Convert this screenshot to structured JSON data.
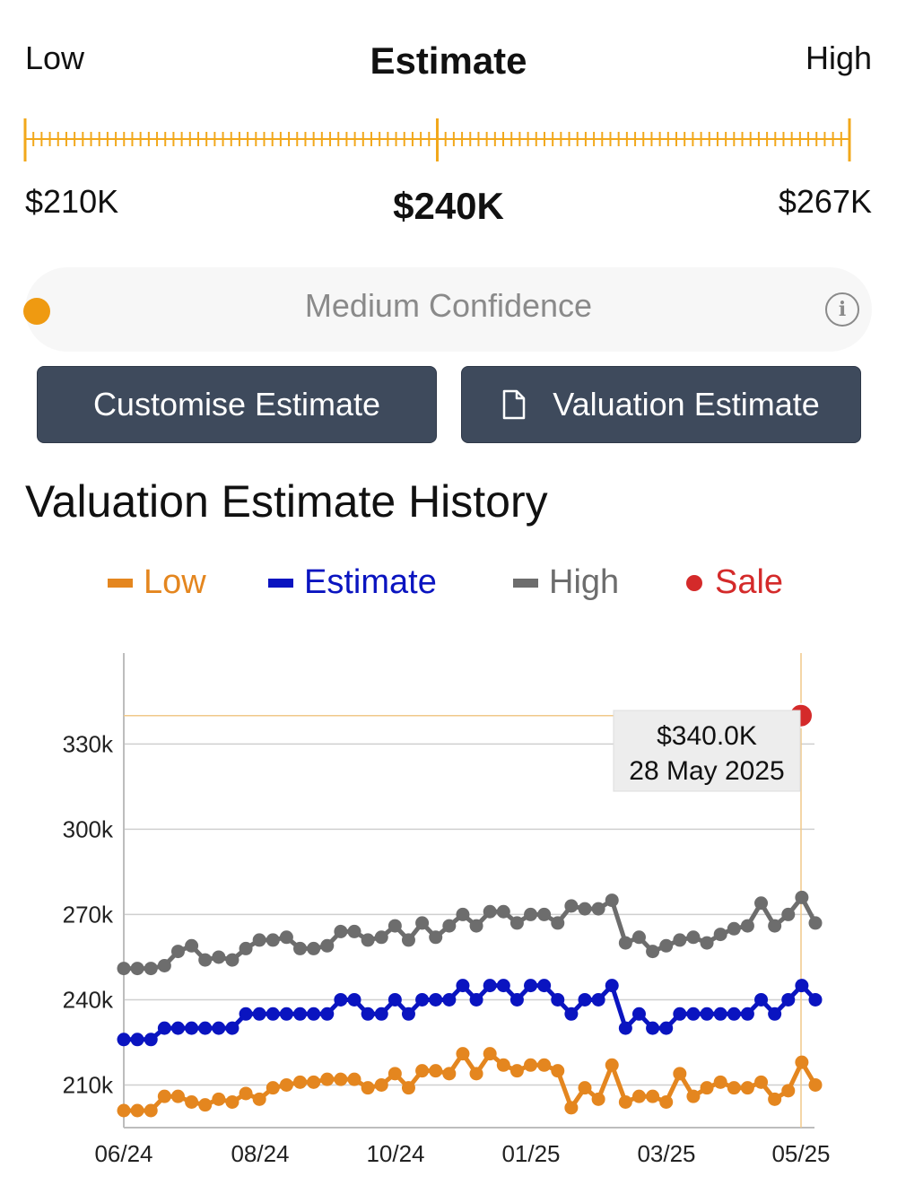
{
  "estimate_range": {
    "low_label": "Low",
    "title": "Estimate",
    "high_label": "High",
    "low_value": "$210K",
    "estimate_value": "$240K",
    "high_value": "$267K"
  },
  "confidence": {
    "label": "Medium Confidence",
    "color": "#ef9a11",
    "info_icon": "info-icon"
  },
  "buttons": {
    "customise": "Customise Estimate",
    "valuation": "Valuation Estimate",
    "valuation_icon": "document-icon"
  },
  "history": {
    "title": "Valuation Estimate History"
  },
  "colors": {
    "low": "#e4861f",
    "estimate": "#0a14c0",
    "high": "#6d6d6d",
    "sale": "#d42a2a",
    "tick": "#f2a81b",
    "button_bg": "#3e4a5c"
  },
  "chart_data": {
    "type": "line",
    "legend": [
      {
        "name": "Low",
        "color": "#e4861f",
        "marker": "bar"
      },
      {
        "name": "Estimate",
        "color": "#0a14c0",
        "marker": "bar"
      },
      {
        "name": "High",
        "color": "#6d6d6d",
        "marker": "bar"
      },
      {
        "name": "Sale",
        "color": "#d42a2a",
        "marker": "dot"
      }
    ],
    "legend_placement": "top-center",
    "x_ticks": [
      "06/24",
      "08/24",
      "10/24",
      "01/25",
      "03/25",
      "05/25"
    ],
    "y_ticks": [
      210,
      240,
      270,
      300,
      330
    ],
    "y_tick_labels": [
      "210k",
      "240k",
      "270k",
      "300k",
      "330k"
    ],
    "ylim": [
      195,
      362
    ],
    "grid": true,
    "series": [
      {
        "name": "High",
        "values": [
          251,
          251,
          251,
          252,
          257,
          259,
          254,
          255,
          254,
          258,
          261,
          261,
          262,
          258,
          258,
          259,
          264,
          264,
          261,
          262,
          266,
          261,
          267,
          262,
          266,
          270,
          266,
          271,
          271,
          267,
          270,
          270,
          267,
          273,
          272,
          272,
          275,
          260,
          262,
          257,
          259,
          261,
          262,
          260,
          263,
          265,
          266,
          274,
          266,
          270,
          276,
          267
        ]
      },
      {
        "name": "Estimate",
        "values": [
          226,
          226,
          226,
          230,
          230,
          230,
          230,
          230,
          230,
          235,
          235,
          235,
          235,
          235,
          235,
          235,
          240,
          240,
          235,
          235,
          240,
          235,
          240,
          240,
          240,
          245,
          240,
          245,
          245,
          240,
          245,
          245,
          240,
          235,
          240,
          240,
          245,
          230,
          235,
          230,
          230,
          235,
          235,
          235,
          235,
          235,
          235,
          240,
          235,
          240,
          245,
          240
        ]
      },
      {
        "name": "Low",
        "values": [
          201,
          201,
          201,
          206,
          206,
          204,
          203,
          205,
          204,
          207,
          205,
          209,
          210,
          211,
          211,
          212,
          212,
          212,
          209,
          210,
          214,
          209,
          215,
          215,
          214,
          221,
          214,
          221,
          217,
          215,
          217,
          217,
          215,
          202,
          209,
          205,
          217,
          204,
          206,
          206,
          204,
          214,
          206,
          209,
          211,
          209,
          209,
          211,
          205,
          208,
          218,
          210
        ]
      }
    ],
    "sale": {
      "value": 340,
      "label_value": "$340.0K",
      "label_date": "28 May 2025"
    }
  }
}
